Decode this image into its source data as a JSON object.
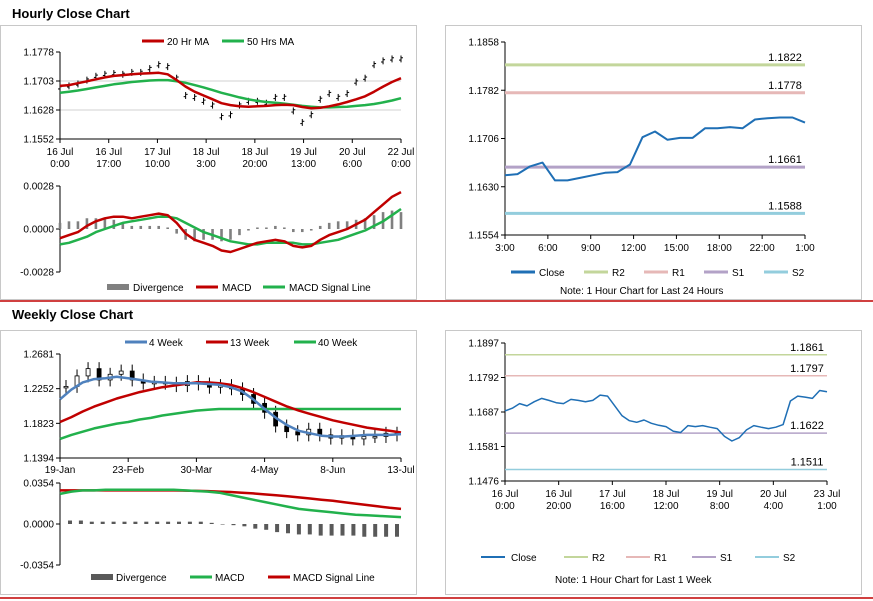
{
  "titles": {
    "hourly": "Hourly Close Chart",
    "weekly": "Weekly Close Chart"
  },
  "colors": {
    "ma20": "#c00000",
    "ma50": "#22b14c",
    "price": "#000000",
    "divergence": "#808080",
    "macd_red": "#c00000",
    "macd_green": "#22b14c",
    "close": "#1f6fb5",
    "r2": "#c3d69b",
    "r1": "#e6b8b7",
    "s1": "#b3a2c7",
    "s2": "#93cddd",
    "week4": "#4f81bd",
    "week13": "#c00000",
    "week40": "#22b14c",
    "divider": "#c00000"
  },
  "hourly_legend": {
    "ma20": "20 Hr MA",
    "ma50": "50 Hrs MA"
  },
  "hourly_macd_legend": {
    "divergence": "Divergence",
    "macd": "MACD",
    "signal": "MACD Signal Line"
  },
  "pivot_legend": {
    "close": "Close",
    "r2": "R2",
    "r1": "R1",
    "s1": "S1",
    "s2": "S2"
  },
  "hourly_note": "Note: 1 Hour Chart for Last 24 Hours",
  "weekly_legend": {
    "w4": "4 Week",
    "w13": "13 Week",
    "w40": "40 Week"
  },
  "weekly_macd_legend": {
    "divergence": "Divergence",
    "macd": "MACD",
    "signal": "MACD Signal Line"
  },
  "weekly_note": "Note: 1 Hour Chart for Last 1 Week",
  "chart_data": [
    {
      "id": "hourly_price",
      "type": "line",
      "title": "Hourly Close Chart",
      "y_ticks": [
        "1.1778",
        "1.1703",
        "1.1628",
        "1.1552"
      ],
      "ylim": [
        1.1552,
        1.1778
      ],
      "x_ticks": [
        [
          "16 Jul",
          "0:00"
        ],
        [
          "16 Jul",
          "17:00"
        ],
        [
          "17 Jul",
          "10:00"
        ],
        [
          "18 Jul",
          "3:00"
        ],
        [
          "18 Jul",
          "20:00"
        ],
        [
          "19 Jul",
          "13:00"
        ],
        [
          "20 Jul",
          "6:00"
        ],
        [
          "22 Jul",
          "0:00"
        ]
      ],
      "series": [
        {
          "name": "Price",
          "values": [
            1.1685,
            1.169,
            1.1695,
            1.1705,
            1.1715,
            1.172,
            1.1722,
            1.172,
            1.1725,
            1.1725,
            1.1735,
            1.1745,
            1.174,
            1.171,
            1.1665,
            1.166,
            1.165,
            1.164,
            1.161,
            1.1615,
            1.164,
            1.165,
            1.165,
            1.1645,
            1.166,
            1.166,
            1.1625,
            1.1595,
            1.1615,
            1.1655,
            1.167,
            1.166,
            1.167,
            1.17,
            1.171,
            1.1745,
            1.1755,
            1.176,
            1.176
          ]
        },
        {
          "name": "20 Hr MA",
          "values": [
            1.169,
            1.1692,
            1.1697,
            1.1702,
            1.1707,
            1.1712,
            1.1716,
            1.1718,
            1.172,
            1.1722,
            1.1723,
            1.1724,
            1.172,
            1.1705,
            1.1688,
            1.1675,
            1.1665,
            1.1655,
            1.1645,
            1.164,
            1.1637,
            1.1636,
            1.1637,
            1.1638,
            1.164,
            1.1641,
            1.164,
            1.1635,
            1.1632,
            1.1633,
            1.1637,
            1.1642,
            1.1648,
            1.1655,
            1.1663,
            1.1675,
            1.1688,
            1.17,
            1.171
          ]
        },
        {
          "name": "50 Hrs MA",
          "values": [
            1.1672,
            1.1675,
            1.1678,
            1.1682,
            1.1686,
            1.169,
            1.1694,
            1.1697,
            1.17,
            1.1702,
            1.1704,
            1.1705,
            1.1705,
            1.1702,
            1.1698,
            1.1692,
            1.1686,
            1.1679,
            1.1672,
            1.1666,
            1.166,
            1.1655,
            1.1651,
            1.1648,
            1.1646,
            1.1644,
            1.1641,
            1.1638,
            1.1636,
            1.1634,
            1.1634,
            1.1635,
            1.1636,
            1.1638,
            1.164,
            1.1643,
            1.1647,
            1.1652,
            1.1658
          ]
        }
      ]
    },
    {
      "id": "hourly_macd",
      "type": "line",
      "y_ticks": [
        "0.0028",
        "0.0000",
        "-0.0028"
      ],
      "ylim": [
        -0.0028,
        0.0028
      ],
      "series": [
        {
          "name": "MACD",
          "values": [
            -0.0006,
            -0.0004,
            -0.0002,
            0.0002,
            0.0005,
            0.0007,
            0.0008,
            0.0008,
            0.0007,
            0.0008,
            0.0009,
            0.001,
            0.0009,
            0.0004,
            -0.0003,
            -0.0007,
            -0.0009,
            -0.0011,
            -0.0014,
            -0.0015,
            -0.0013,
            -0.0011,
            -0.0009,
            -0.0008,
            -0.0007,
            -0.0008,
            -0.0011,
            -0.0012,
            -0.0011,
            -0.0007,
            -0.0004,
            -0.0002,
            0.0,
            0.0003,
            0.0006,
            0.0011,
            0.0016,
            0.0021,
            0.0024
          ]
        },
        {
          "name": "MACD Signal Line",
          "values": [
            -0.001,
            -0.0009,
            -0.0007,
            -0.0005,
            -0.0002,
            0.0,
            0.0002,
            0.0004,
            0.0005,
            0.0006,
            0.0007,
            0.0008,
            0.0008,
            0.0007,
            0.0004,
            0.0001,
            -0.0002,
            -0.0004,
            -0.0006,
            -0.0008,
            -0.0009,
            -0.001,
            -0.001,
            -0.0009,
            -0.0009,
            -0.0009,
            -0.0009,
            -0.001,
            -0.001,
            -0.0009,
            -0.0008,
            -0.0007,
            -0.0005,
            -0.0003,
            -0.0001,
            0.0002,
            0.0005,
            0.0009,
            0.0013
          ]
        }
      ]
    },
    {
      "id": "hourly_pivot",
      "type": "line",
      "y_ticks": [
        "1.1858",
        "1.1782",
        "1.1706",
        "1.1630",
        "1.1554"
      ],
      "ylim": [
        1.1554,
        1.1858
      ],
      "x_ticks": [
        "3:00",
        "6:00",
        "9:00",
        "12:00",
        "15:00",
        "18:00",
        "22:00",
        "1:00"
      ],
      "levels": [
        {
          "name": "R2",
          "value": 1.1822,
          "label": "1.1822"
        },
        {
          "name": "R1",
          "value": 1.1778,
          "label": "1.1778"
        },
        {
          "name": "S1",
          "value": 1.1661,
          "label": "1.1661"
        },
        {
          "name": "S2",
          "value": 1.1588,
          "label": "1.1588"
        }
      ],
      "series": [
        {
          "name": "Close",
          "values": [
            1.1648,
            1.165,
            1.1662,
            1.1668,
            1.164,
            1.164,
            1.1644,
            1.1648,
            1.1652,
            1.1653,
            1.1665,
            1.1708,
            1.1717,
            1.1704,
            1.1707,
            1.1707,
            1.1722,
            1.1722,
            1.1724,
            1.1722,
            1.1736,
            1.1738,
            1.1739,
            1.1739,
            1.1731
          ]
        }
      ]
    },
    {
      "id": "weekly_price",
      "type": "line",
      "title": "Weekly Close Chart",
      "y_ticks": [
        "1.2681",
        "1.2252",
        "1.1823",
        "1.1394"
      ],
      "ylim": [
        1.1394,
        1.2681
      ],
      "x_ticks": [
        "19-Jan",
        "23-Feb",
        "30-Mar",
        "4-May",
        "8-Jun",
        "13-Jul"
      ],
      "series": [
        {
          "name": "Price",
          "values": [
            1.228,
            1.241,
            1.25,
            1.236,
            1.243,
            1.247,
            1.236,
            1.232,
            1.233,
            1.232,
            1.229,
            1.234,
            1.231,
            1.227,
            1.229,
            1.225,
            1.218,
            1.207,
            1.196,
            1.179,
            1.172,
            1.168,
            1.175,
            1.168,
            1.164,
            1.167,
            1.163,
            1.166,
            1.166,
            1.17,
            1.168
          ]
        },
        {
          "name": "4 Week",
          "values": [
            1.212,
            1.224,
            1.233,
            1.237,
            1.238,
            1.24,
            1.238,
            1.236,
            1.234,
            1.233,
            1.232,
            1.232,
            1.232,
            1.231,
            1.23,
            1.227,
            1.222,
            1.212,
            1.2,
            1.189,
            1.18,
            1.173,
            1.17,
            1.167,
            1.166,
            1.166,
            1.167,
            1.168,
            1.168,
            1.168,
            1.169
          ]
        },
        {
          "name": "13 Week",
          "values": [
            1.184,
            1.19,
            1.197,
            1.203,
            1.208,
            1.213,
            1.217,
            1.221,
            1.224,
            1.227,
            1.229,
            1.231,
            1.233,
            1.233,
            1.232,
            1.23,
            1.226,
            1.221,
            1.215,
            1.209,
            1.203,
            1.198,
            1.194,
            1.19,
            1.186,
            1.183,
            1.18,
            1.177,
            1.175,
            1.173,
            1.171
          ]
        },
        {
          "name": "40 Week",
          "values": [
            1.163,
            1.168,
            1.172,
            1.176,
            1.179,
            1.182,
            1.184,
            1.187,
            1.189,
            1.192,
            1.194,
            1.196,
            1.198,
            1.199,
            1.2,
            1.2,
            1.2,
            1.2,
            1.2,
            1.2,
            1.2,
            1.2,
            1.2,
            1.2,
            1.2,
            1.2,
            1.2,
            1.2,
            1.2,
            1.2,
            1.2
          ]
        }
      ]
    },
    {
      "id": "weekly_macd",
      "type": "line",
      "y_ticks": [
        "0.0354",
        "0.0000",
        "-0.0354"
      ],
      "ylim": [
        -0.0354,
        0.0354
      ],
      "series": [
        {
          "name": "MACD",
          "values": [
            0.026,
            0.028,
            0.029,
            0.029,
            0.0295,
            0.0295,
            0.0295,
            0.0295,
            0.0295,
            0.0295,
            0.0295,
            0.029,
            0.0285,
            0.028,
            0.027,
            0.025,
            0.023,
            0.021,
            0.019,
            0.017,
            0.015,
            0.013,
            0.012,
            0.011,
            0.01,
            0.009,
            0.008,
            0.0075,
            0.007,
            0.0065,
            0.006
          ]
        },
        {
          "name": "MACD Signal Line",
          "values": [
            0.029,
            0.029,
            0.029,
            0.029,
            0.029,
            0.029,
            0.029,
            0.029,
            0.029,
            0.029,
            0.029,
            0.0288,
            0.0286,
            0.0284,
            0.028,
            0.0276,
            0.027,
            0.0264,
            0.0256,
            0.0248,
            0.024,
            0.023,
            0.022,
            0.021,
            0.02,
            0.0188,
            0.0176,
            0.0164,
            0.0152,
            0.014,
            0.013
          ]
        },
        {
          "name": "Divergence",
          "values": [
            0.003,
            0.003,
            0.002,
            0.002,
            0.002,
            0.002,
            0.002,
            0.002,
            0.002,
            0.002,
            0.002,
            0.002,
            0.002,
            0.001,
            0.0,
            -0.001,
            -0.002,
            -0.004,
            -0.005,
            -0.007,
            -0.008,
            -0.009,
            -0.009,
            -0.01,
            -0.01,
            -0.01,
            -0.01,
            -0.011,
            -0.011,
            -0.011,
            -0.011
          ]
        }
      ]
    },
    {
      "id": "weekly_pivot",
      "type": "line",
      "y_ticks": [
        "1.1897",
        "1.1792",
        "1.1687",
        "1.1581",
        "1.1476"
      ],
      "ylim": [
        1.1476,
        1.1897
      ],
      "x_ticks": [
        [
          "16 Jul",
          "0:00"
        ],
        [
          "16 Jul",
          "20:00"
        ],
        [
          "17 Jul",
          "16:00"
        ],
        [
          "18 Jul",
          "12:00"
        ],
        [
          "19 Jul",
          "8:00"
        ],
        [
          "20 Jul",
          "4:00"
        ],
        [
          "23 Jul",
          "1:00"
        ]
      ],
      "levels": [
        {
          "name": "R2",
          "value": 1.1861,
          "label": "1.1861"
        },
        {
          "name": "R1",
          "value": 1.1797,
          "label": "1.1797"
        },
        {
          "name": "S1",
          "value": 1.1622,
          "label": "1.1622"
        },
        {
          "name": "S2",
          "value": 1.1511,
          "label": "1.1511"
        }
      ],
      "series": [
        {
          "name": "Close",
          "values": [
            1.169,
            1.1698,
            1.1712,
            1.1705,
            1.1718,
            1.1728,
            1.1722,
            1.1715,
            1.1712,
            1.1725,
            1.1722,
            1.1718,
            1.1722,
            1.1738,
            1.1735,
            1.1705,
            1.1675,
            1.166,
            1.1655,
            1.1662,
            1.1652,
            1.1646,
            1.1642,
            1.1628,
            1.1624,
            1.1645,
            1.1642,
            1.1645,
            1.164,
            1.1636,
            1.1612,
            1.1598,
            1.1608,
            1.1632,
            1.1645,
            1.164,
            1.1636,
            1.164,
            1.1648,
            1.172,
            1.1735,
            1.1732,
            1.1728,
            1.1752,
            1.1748
          ]
        }
      ]
    }
  ]
}
